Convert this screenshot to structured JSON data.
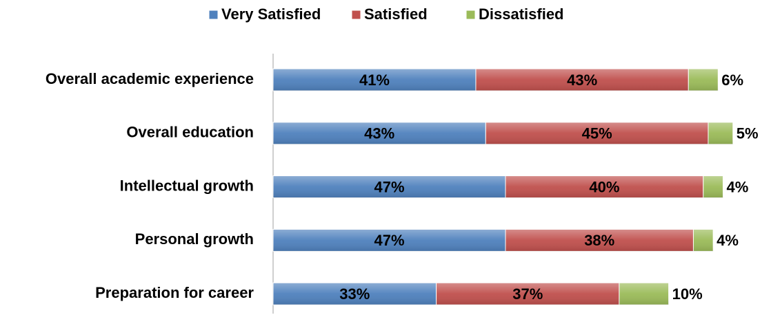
{
  "chart_data": {
    "type": "stacked_bar_horizontal",
    "categories": [
      "Overall academic experience",
      "Overall education",
      "Intellectual growth",
      "Personal growth",
      "Preparation for career"
    ],
    "series": [
      {
        "name": "Very Satisfied",
        "color": "#4f81bd",
        "values": [
          41,
          43,
          47,
          47,
          33
        ],
        "value_labels": [
          "41%",
          "43%",
          "47%",
          "47%",
          "33%"
        ]
      },
      {
        "name": "Satisfied",
        "color": "#c0504d",
        "values": [
          43,
          45,
          40,
          38,
          37
        ],
        "value_labels": [
          "43%",
          "45%",
          "40%",
          "38%",
          "37%"
        ]
      },
      {
        "name": "Dissatisfied",
        "color": "#9bbb59",
        "values": [
          6,
          5,
          4,
          4,
          10
        ],
        "value_labels": [
          "6%",
          "5%",
          "4%",
          "4%",
          "10%"
        ]
      }
    ],
    "legend": "top"
  }
}
